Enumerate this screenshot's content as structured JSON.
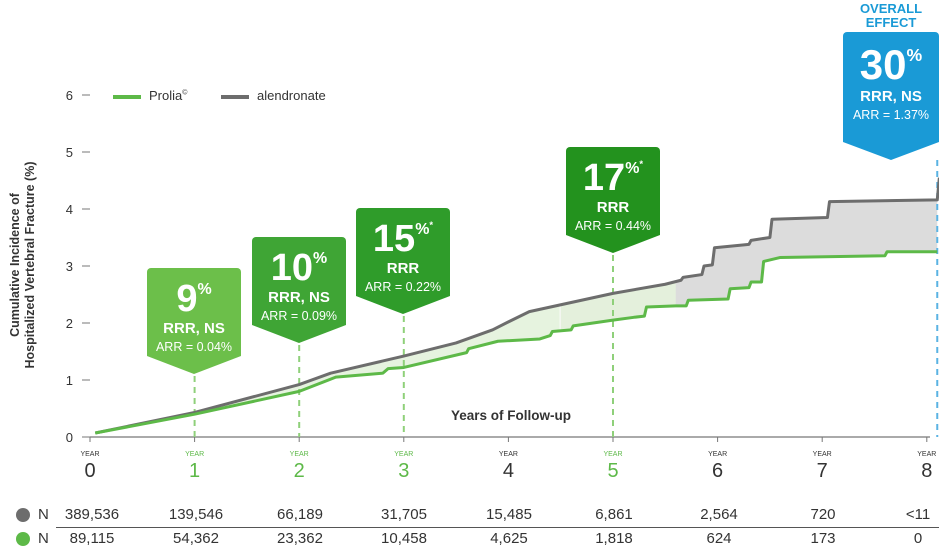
{
  "chart_data": {
    "type": "line",
    "ylabel_lines": [
      "Cumulative Incidence of",
      "Hospitalized Vertebral Fracture (%)"
    ],
    "xlabel": "Years of Follow-up",
    "ylim": [
      0,
      6
    ],
    "xlim": [
      0,
      8
    ],
    "y_ticks": [
      "0",
      "1",
      "2",
      "3",
      "4",
      "5",
      "6"
    ],
    "x_ticks": [
      {
        "prefix": "YEAR",
        "value": "0",
        "highlight": false
      },
      {
        "prefix": "YEAR",
        "value": "1",
        "highlight": true
      },
      {
        "prefix": "YEAR",
        "value": "2",
        "highlight": true
      },
      {
        "prefix": "YEAR",
        "value": "3",
        "highlight": true
      },
      {
        "prefix": "YEAR",
        "value": "4",
        "highlight": false
      },
      {
        "prefix": "YEAR",
        "value": "5",
        "highlight": true
      },
      {
        "prefix": "YEAR",
        "value": "6",
        "highlight": false
      },
      {
        "prefix": "YEAR",
        "value": "7",
        "highlight": false
      },
      {
        "prefix": "YEAR",
        "value": "8",
        "highlight": false
      }
    ],
    "series": [
      {
        "name": "Prolia",
        "legend_mark": "©",
        "color": "#5db948",
        "points": [
          [
            0.05,
            0.07
          ],
          [
            1,
            0.4
          ],
          [
            2,
            0.8
          ],
          [
            2.35,
            1.05
          ],
          [
            2.8,
            1.12
          ],
          [
            2.85,
            1.2
          ],
          [
            3,
            1.22
          ],
          [
            3.6,
            1.48
          ],
          [
            3.62,
            1.55
          ],
          [
            3.9,
            1.68
          ],
          [
            4.3,
            1.72
          ],
          [
            4.4,
            1.78
          ],
          [
            4.42,
            1.85
          ],
          [
            4.6,
            1.88
          ],
          [
            4.62,
            1.95
          ],
          [
            5,
            2.05
          ],
          [
            5.2,
            2.1
          ],
          [
            5.3,
            2.12
          ],
          [
            5.32,
            2.28
          ],
          [
            5.6,
            2.3
          ],
          [
            5.7,
            2.3
          ],
          [
            5.72,
            2.4
          ],
          [
            6.1,
            2.42
          ],
          [
            6.12,
            2.6
          ],
          [
            6.3,
            2.62
          ],
          [
            6.32,
            2.72
          ],
          [
            6.42,
            2.72
          ],
          [
            6.44,
            3.08
          ],
          [
            6.6,
            3.15
          ],
          [
            7.6,
            3.18
          ],
          [
            7.62,
            3.25
          ],
          [
            8.0,
            3.25
          ],
          [
            8.1,
            3.25
          ]
        ]
      },
      {
        "name": "alendronate",
        "color": "#6d6d6d",
        "points": [
          [
            0.05,
            0.07
          ],
          [
            1,
            0.43
          ],
          [
            2,
            0.92
          ],
          [
            2.3,
            1.12
          ],
          [
            3,
            1.42
          ],
          [
            3.5,
            1.65
          ],
          [
            3.85,
            1.88
          ],
          [
            4,
            2.02
          ],
          [
            4.2,
            2.2
          ],
          [
            5,
            2.52
          ],
          [
            5.5,
            2.68
          ],
          [
            5.65,
            2.75
          ],
          [
            5.67,
            2.8
          ],
          [
            5.85,
            2.85
          ],
          [
            5.87,
            3.0
          ],
          [
            5.95,
            3.02
          ],
          [
            5.97,
            3.32
          ],
          [
            6.3,
            3.38
          ],
          [
            6.32,
            3.45
          ],
          [
            6.5,
            3.5
          ],
          [
            6.52,
            3.82
          ],
          [
            7.05,
            3.85
          ],
          [
            7.07,
            4.13
          ],
          [
            8.1,
            4.16
          ],
          [
            8.12,
            4.55
          ]
        ]
      }
    ],
    "callouts": [
      {
        "big": "9",
        "sup": "%",
        "star": "",
        "rrr": "RRR, NS",
        "arr": "ARR = 0.04%",
        "year": 1
      },
      {
        "big": "10",
        "sup": "%",
        "star": "",
        "rrr": "RRR, NS",
        "arr": "ARR = 0.09%",
        "year": 2
      },
      {
        "big": "15",
        "sup": "%",
        "star": "*",
        "rrr": "RRR",
        "arr": "ARR = 0.22%",
        "year": 3
      },
      {
        "big": "17",
        "sup": "%",
        "star": "*",
        "rrr": "RRR",
        "arr": "ARR = 0.44%",
        "year": 5
      },
      {
        "big": "30",
        "sup": "%",
        "star": "",
        "rrr": "RRR, NS",
        "arr": "ARR = 1.37%",
        "year": 8.1
      }
    ],
    "overall_label_lines": [
      "OVERALL",
      "EFFECT"
    ]
  },
  "n_table": {
    "label": "N",
    "rows": [
      {
        "series": "alendronate",
        "color": "#6d6d6d",
        "values": [
          "389,536",
          "139,546",
          "66,189",
          "31,705",
          "15,485",
          "6,861",
          "2,564",
          "720",
          "<11"
        ]
      },
      {
        "series": "Prolia",
        "color": "#5db948",
        "values": [
          "89,115",
          "54,362",
          "23,362",
          "10,458",
          "4,625",
          "1,818",
          "624",
          "173",
          "0"
        ]
      }
    ]
  },
  "colors": {
    "prolia_green": "#5db948",
    "callout_green_light": "#6cbf4a",
    "callout_green_mid": "#3fa535",
    "callout_green_dark": "#23921e",
    "overall_blue": "#1a9ad6",
    "gap_fill": "#dcdcdc"
  }
}
